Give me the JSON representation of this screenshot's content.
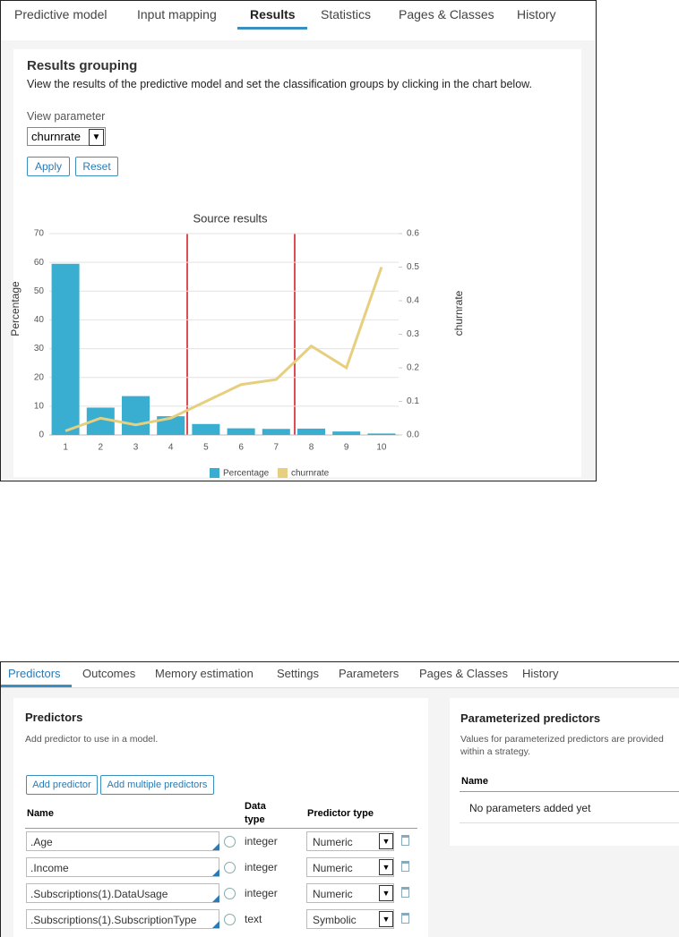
{
  "top_panel": {
    "tabs": [
      "Predictive model",
      "Input mapping",
      "Results",
      "Statistics",
      "Pages & Classes",
      "History"
    ],
    "heading": "Results grouping",
    "description": "View the results of the predictive model and set the classification groups by clicking in the chart below.",
    "view_parameter_label": "View parameter",
    "view_parameter_value": "churnrate",
    "buttons": [
      "Apply",
      "Reset"
    ]
  },
  "chart_data": {
    "type": "combo",
    "title": "Source results",
    "categories": [
      "1",
      "2",
      "3",
      "4",
      "5",
      "6",
      "7",
      "8",
      "9",
      "10"
    ],
    "series": [
      {
        "name": "Percentage",
        "type": "bar",
        "color": "#3aaed0",
        "values": [
          59.5,
          9.5,
          13.5,
          6.5,
          3.8,
          2.3,
          2.1,
          2.2,
          1.2,
          0.5
        ]
      },
      {
        "name": "churnrate",
        "type": "line",
        "axis": "y2",
        "color": "#e6cf7e",
        "values": [
          0.012,
          0.05,
          0.03,
          0.05,
          0.1,
          0.15,
          0.165,
          0.265,
          0.2,
          0.5
        ]
      }
    ],
    "ylabel": "Percentage",
    "y2label": "churnrate",
    "ylim": [
      0,
      70
    ],
    "yticks": [
      0,
      10,
      20,
      30,
      40,
      50,
      60,
      70
    ],
    "y2lim": [
      0,
      0.6
    ],
    "y2ticks": [
      {
        "value": 0,
        "label": "0.0"
      },
      0.1,
      0.2,
      0.3,
      0.4,
      0.5,
      0.6
    ],
    "grid": true
  },
  "bottom_panel": {
    "tabs": [
      "Predictors",
      "Outcomes",
      "Memory estimation",
      "Settings",
      "Parameters",
      "Pages & Classes",
      "History"
    ],
    "predictors": {
      "heading": "Predictors",
      "description": "Add predictor to use in a model.",
      "buttons": [
        "Add predictor",
        "Add multiple predictors"
      ],
      "columns": [
        "Name",
        "Data type",
        "Predictor type"
      ],
      "rows": [
        {
          "name": ".Age",
          "data_type": "integer",
          "predictor_type": "Numeric"
        },
        {
          "name": ".Income",
          "data_type": "integer",
          "predictor_type": "Numeric"
        },
        {
          "name": ".Subscriptions(1).DataUsage",
          "data_type": "integer",
          "predictor_type": "Numeric"
        },
        {
          "name": ".Subscriptions(1).SubscriptionType",
          "data_type": "text",
          "predictor_type": "Symbolic"
        }
      ]
    },
    "parameterized": {
      "heading": "Parameterized predictors",
      "description_lines": [
        "Values for parameterized predictors are provided",
        "within a strategy."
      ],
      "column": "Name",
      "empty": "No parameters added yet"
    }
  }
}
